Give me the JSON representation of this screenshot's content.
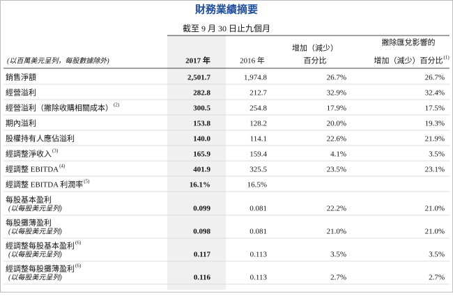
{
  "title": "財務業績摘要",
  "subtitle": "截至 9 月 30 日止九個月",
  "header": {
    "caption": "(以百萬美元呈列，每股數據除外)",
    "columns": [
      {
        "lines": [
          "2017 年"
        ]
      },
      {
        "lines": [
          "2016 年"
        ]
      },
      {
        "lines": [
          "增加（減少）",
          "百分比"
        ]
      },
      {
        "lines": [
          "撇除匯兌影響的",
          "增加（減少）百分比"
        ],
        "note": "(1)"
      }
    ]
  },
  "rows": [
    {
      "label": "銷售淨額",
      "values": [
        "2,501.7",
        "1,974.8",
        "26.7%",
        "26.7%"
      ]
    },
    {
      "label": "經營溢利",
      "values": [
        "282.8",
        "212.7",
        "32.9%",
        "32.4%"
      ]
    },
    {
      "label": "經營溢利（撇除收購相關成本）",
      "note": "(2)",
      "values": [
        "300.5",
        "254.8",
        "17.9%",
        "17.5%"
      ]
    },
    {
      "label": "期內溢利",
      "values": [
        "153.8",
        "128.2",
        "20.0%",
        "19.3%"
      ]
    },
    {
      "label": "股權持有人應佔溢利",
      "values": [
        "140.0",
        "114.1",
        "22.6%",
        "21.9%"
      ]
    },
    {
      "label": "經調整淨收入",
      "note": "(3)",
      "values": [
        "165.9",
        "159.4",
        "4.1%",
        "3.5%"
      ]
    },
    {
      "label": "經調整 EBITDA",
      "note": "(4)",
      "values": [
        "401.9",
        "325.5",
        "23.5%",
        "23.1%"
      ]
    },
    {
      "label": "經調整 EBITDA 利潤率",
      "note": "(5)",
      "values": [
        "16.1%",
        "16.5%"
      ]
    },
    {
      "label": "每股基本盈利",
      "sub": "(以每股美元呈列)",
      "values": [
        "0.099",
        "0.081",
        "22.2%",
        "21.0%"
      ]
    },
    {
      "label": "每股攤薄盈利",
      "sub": "(以每股美元呈列)",
      "values": [
        "0.098",
        "0.081",
        "21.0%",
        "21.0%"
      ]
    },
    {
      "label": "經調整每股基本盈利",
      "note": "(6)",
      "sub": "(以每股美元呈列)",
      "values": [
        "0.117",
        "0.113",
        "3.5%",
        "3.5%"
      ]
    },
    {
      "label": "經調整每股攤薄盈利",
      "note": "(6)",
      "sub": "(以每股美元呈列)",
      "values": [
        "0.116",
        "0.113",
        "2.7%",
        "2.7%"
      ]
    }
  ]
}
